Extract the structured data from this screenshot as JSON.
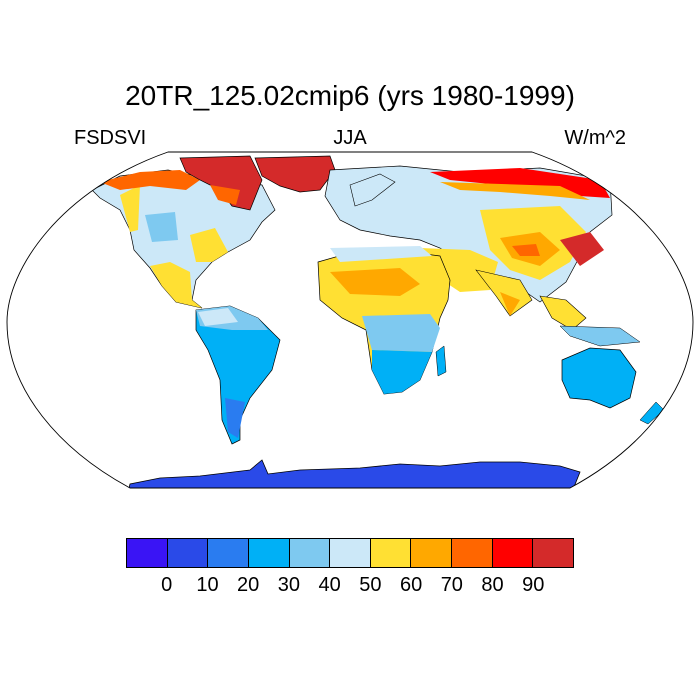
{
  "title": "20TR_125.02cmip6 (yrs 1980-1999)",
  "variable": "FSDSVI",
  "season": "JJA",
  "units": "W/m^2",
  "colorbar": {
    "colors": [
      "#3a14f5",
      "#2a4ae8",
      "#2a7cf0",
      "#00b0f6",
      "#7ec9f0",
      "#cce8f8",
      "#ffe033",
      "#ffa800",
      "#ff6600",
      "#ff0000",
      "#d42a2a"
    ],
    "labels": [
      "0",
      "10",
      "20",
      "30",
      "40",
      "50",
      "60",
      "70",
      "80",
      "90"
    ]
  }
}
